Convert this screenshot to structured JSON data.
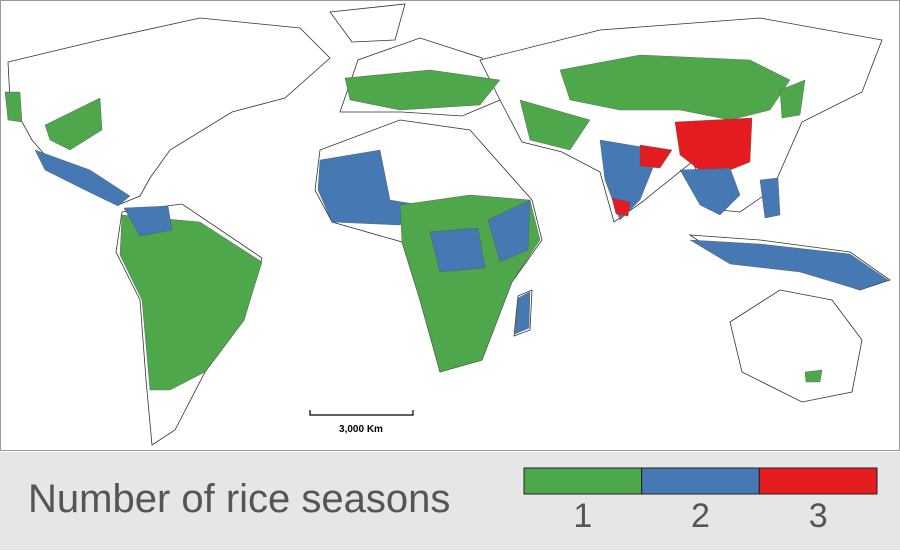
{
  "scale_bar": {
    "label": "3,000 Km"
  },
  "legend": {
    "title": "Number of rice seasons",
    "items": [
      {
        "label": "1",
        "color": "#4ea84b"
      },
      {
        "label": "2",
        "color": "#4679b4"
      },
      {
        "label": "3",
        "color": "#e41c1f"
      }
    ]
  }
}
